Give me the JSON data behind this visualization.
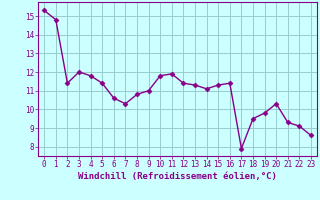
{
  "x": [
    0,
    1,
    2,
    3,
    4,
    5,
    6,
    7,
    8,
    9,
    10,
    11,
    12,
    13,
    14,
    15,
    16,
    17,
    18,
    19,
    20,
    21,
    22,
    23
  ],
  "y": [
    15.3,
    14.8,
    11.4,
    12.0,
    11.8,
    11.4,
    10.6,
    10.3,
    10.8,
    11.0,
    11.8,
    11.9,
    11.4,
    11.3,
    11.1,
    11.3,
    11.4,
    7.9,
    9.5,
    9.8,
    10.3,
    9.3,
    9.1,
    8.6
  ],
  "xlim": [
    -0.5,
    23.5
  ],
  "ylim": [
    7.5,
    15.75
  ],
  "yticks": [
    8,
    9,
    10,
    11,
    12,
    13,
    14,
    15
  ],
  "xticks": [
    0,
    1,
    2,
    3,
    4,
    5,
    6,
    7,
    8,
    9,
    10,
    11,
    12,
    13,
    14,
    15,
    16,
    17,
    18,
    19,
    20,
    21,
    22,
    23
  ],
  "xlabel": "Windchill (Refroidissement éolien,°C)",
  "line_color": "#880088",
  "marker": "D",
  "marker_size": 2.5,
  "linewidth": 1.0,
  "bg_color": "#ccffff",
  "grid_color": "#99cccc",
  "tick_fontsize": 5.5,
  "label_fontsize": 6.5
}
